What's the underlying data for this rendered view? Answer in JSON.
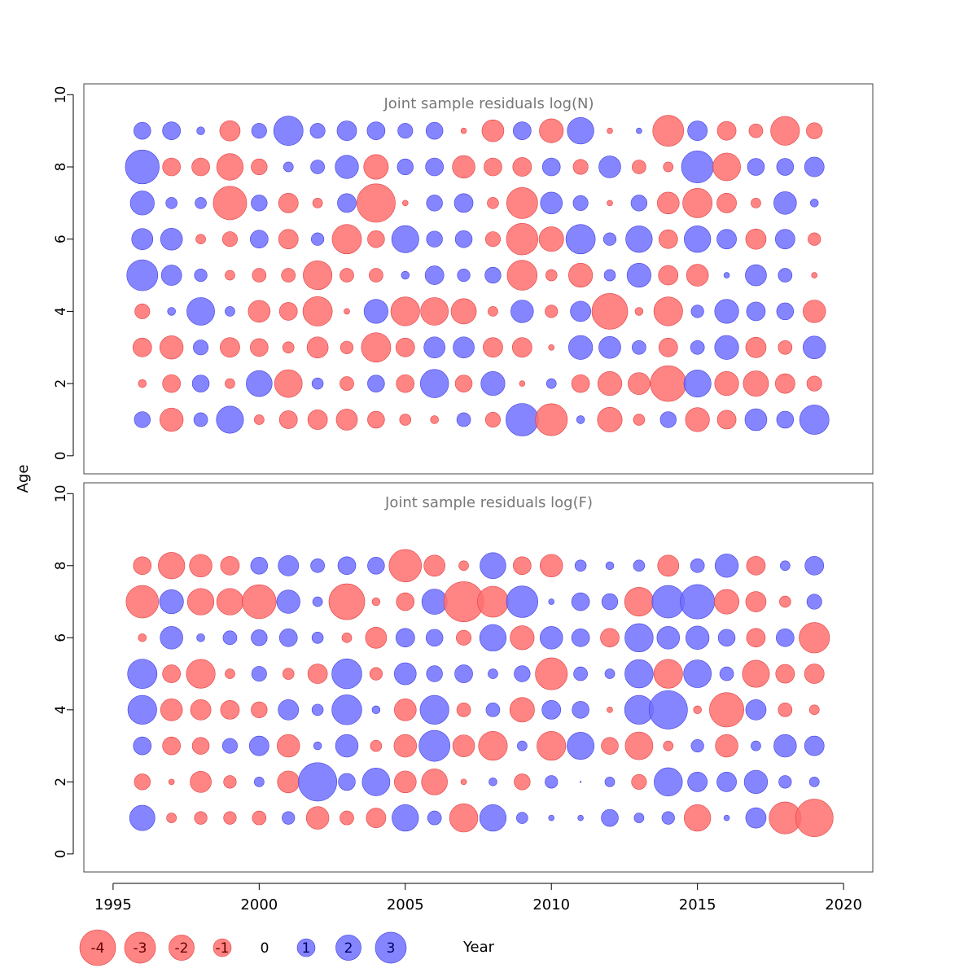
{
  "chart_data": {
    "type": "bubble",
    "xlabel": "Year",
    "ylabel": "Age",
    "xlim": [
      1994,
      2021
    ],
    "x_ticks": [
      1995,
      2000,
      2005,
      2010,
      2015,
      2020
    ],
    "y_ticks": [
      0,
      2,
      4,
      6,
      8,
      10
    ],
    "ylim": [
      -0.5,
      10.3
    ],
    "colors": {
      "negative": "#ff6f6f",
      "positive": "#7070ff"
    },
    "years": [
      1996,
      1997,
      1998,
      1999,
      2000,
      2001,
      2002,
      2003,
      2004,
      2005,
      2006,
      2007,
      2008,
      2009,
      2010,
      2011,
      2012,
      2013,
      2014,
      2015,
      2016,
      2017,
      2018,
      2019
    ],
    "legend": [
      {
        "label": "-4",
        "value": -4
      },
      {
        "label": "-3",
        "value": -3
      },
      {
        "label": "-2",
        "value": -2
      },
      {
        "label": "-1",
        "value": -1
      },
      {
        "label": "0",
        "value": 0
      },
      {
        "label": "1",
        "value": 1
      },
      {
        "label": "2",
        "value": 2
      },
      {
        "label": "3",
        "value": 3
      }
    ],
    "panels": [
      {
        "title": "Joint sample residuals log(N)",
        "ages": [
          1,
          2,
          3,
          4,
          5,
          6,
          7,
          8,
          9
        ],
        "residuals": [
          [
            0.8,
            -0.2,
            -1.1,
            -0.7,
            3.0,
            1.4,
            1.8,
            3.6,
            0.9
          ],
          [
            -1.7,
            -1.0,
            -1.7,
            0.2,
            1.3,
            1.5,
            0.4,
            -1.0,
            1.0
          ],
          [
            0.6,
            0.9,
            0.7,
            2.4,
            0.5,
            -0.3,
            0.4,
            -1.0,
            0.2
          ],
          [
            2.3,
            -0.3,
            -1.2,
            0.3,
            -0.3,
            -0.7,
            -3.5,
            -2.2,
            -1.3
          ],
          [
            -0.3,
            2.1,
            -1.0,
            -1.5,
            -0.6,
            1.0,
            0.8,
            -0.8,
            0.7
          ],
          [
            -1.0,
            -2.4,
            -0.4,
            -1.0,
            -0.6,
            -1.2,
            -1.2,
            0.3,
            2.7
          ],
          [
            -1.2,
            0.4,
            -1.4,
            -2.7,
            -2.6,
            0.5,
            -0.3,
            0.6,
            0.7
          ],
          [
            -1.4,
            -0.6,
            -0.5,
            -0.1,
            -0.6,
            -2.7,
            1.1,
            1.7,
            1.2
          ],
          [
            -0.9,
            0.9,
            -2.7,
            1.8,
            -0.6,
            -0.9,
            -4.6,
            -1.9,
            1.0
          ],
          [
            -0.4,
            -1.0,
            -1.1,
            -2.6,
            0.2,
            2.3,
            -0.1,
            0.8,
            0.7
          ],
          [
            -0.2,
            2.5,
            1.4,
            -2.4,
            1.1,
            0.8,
            0.8,
            1.0,
            0.9
          ],
          [
            0.6,
            -0.9,
            1.4,
            -2.0,
            0.5,
            0.9,
            1.1,
            -1.6,
            -0.1
          ],
          [
            -0.7,
            1.8,
            -1.2,
            -0.3,
            0.8,
            -0.7,
            -0.4,
            -1.0,
            -1.5
          ],
          [
            3.3,
            -0.1,
            -1.2,
            1.6,
            -2.8,
            -3.1,
            -3.0,
            -1.1,
            1.0
          ],
          [
            -3.2,
            0.3,
            -0.1,
            -0.5,
            -0.4,
            -1.9,
            1.5,
            1.0,
            -1.8
          ],
          [
            0.2,
            -1.0,
            1.8,
            1.3,
            -1.8,
            2.7,
            0.7,
            -0.7,
            2.2
          ],
          [
            -1.9,
            -1.8,
            1.5,
            -4.0,
            0.4,
            0.5,
            -0.1,
            1.5,
            -0.1
          ],
          [
            -0.4,
            -1.5,
            0.6,
            -0.2,
            1.8,
            2.2,
            0.8,
            -0.6,
            0.1
          ],
          [
            0.8,
            -4.0,
            -1.1,
            -2.6,
            -1.2,
            -1.1,
            -1.5,
            -0.3,
            -3.0
          ],
          [
            -1.8,
            2.3,
            0.6,
            0.5,
            -1.5,
            2.2,
            -2.7,
            3.2,
            1.2
          ],
          [
            -1.1,
            -1.8,
            1.8,
            1.8,
            0.1,
            1.2,
            -1.2,
            -2.4,
            -1.1
          ],
          [
            1.5,
            -2.0,
            -1.3,
            1.1,
            1.4,
            -1.3,
            -0.3,
            0.9,
            -0.6
          ],
          [
            0.9,
            -1.2,
            -0.6,
            0.9,
            0.6,
            1.2,
            1.6,
            0.9,
            -2.6
          ],
          [
            2.7,
            -0.7,
            1.6,
            -1.6,
            -0.1,
            -0.5,
            0.2,
            1.2,
            -0.8
          ]
        ]
      },
      {
        "title": "Joint sample residuals log(F)",
        "ages": [
          1,
          2,
          3,
          4,
          5,
          6,
          7,
          8
        ],
        "residuals": [
          [
            2.0,
            -0.8,
            1.0,
            2.6,
            2.7,
            -0.2,
            -3.3,
            -1.0
          ],
          [
            -0.3,
            -0.1,
            -1.0,
            -1.5,
            -1.0,
            1.6,
            1.8,
            -2.2
          ],
          [
            -0.5,
            -1.4,
            -0.9,
            -1.3,
            -2.6,
            0.2,
            -2.2,
            -1.6
          ],
          [
            -0.5,
            -0.5,
            0.7,
            -1.1,
            -0.3,
            0.6,
            -2.2,
            -1.1
          ],
          [
            -0.6,
            0.3,
            1.2,
            -0.8,
            0.7,
            0.8,
            -3.6,
            0.9
          ],
          [
            0.5,
            -1.5,
            -1.6,
            1.3,
            -0.4,
            1.0,
            1.7,
            1.3
          ],
          [
            -1.6,
            4.6,
            0.2,
            0.4,
            -1.2,
            0.4,
            0.3,
            0.6
          ],
          [
            -0.6,
            0.9,
            1.6,
            2.8,
            2.8,
            -0.3,
            -4.0,
            1.0
          ],
          [
            -1.2,
            2.4,
            -0.4,
            0.2,
            -0.5,
            -1.4,
            -0.2,
            0.9
          ],
          [
            2.2,
            -1.5,
            -1.6,
            -1.5,
            1.5,
            1.1,
            -1.0,
            -3.3
          ],
          [
            0.6,
            -2.1,
            3.0,
            2.6,
            0.8,
            0.9,
            2.0,
            -1.4
          ],
          [
            -2.5,
            -0.1,
            -1.5,
            -0.6,
            1.0,
            -0.7,
            -5.0,
            -0.3
          ],
          [
            2.2,
            0.2,
            -2.6,
            0.6,
            0.3,
            2.2,
            -3.0,
            2.1
          ],
          [
            0.4,
            -0.8,
            0.3,
            -1.9,
            0.8,
            -1.8,
            3.1,
            -1.0
          ],
          [
            0.1,
            0.5,
            -2.6,
            1.1,
            -3.2,
            1.6,
            0.1,
            -1.6
          ],
          [
            0.1,
            0.0,
            2.3,
            0.9,
            0.6,
            1.0,
            1.0,
            0.4
          ],
          [
            0.9,
            0.3,
            -0.9,
            -0.1,
            0.3,
            -1.1,
            0.8,
            0.2
          ],
          [
            0.3,
            -0.7,
            -2.4,
            2.6,
            2.5,
            2.5,
            -2.6,
            0.4
          ],
          [
            0.5,
            2.5,
            -0.3,
            4.6,
            -2.6,
            1.6,
            3.3,
            -1.4
          ],
          [
            -2.2,
            1.2,
            0.5,
            -0.2,
            2.4,
            1.7,
            3.7,
            0.6
          ],
          [
            0.1,
            1.2,
            -1.6,
            -3.7,
            0.6,
            0.9,
            -1.9,
            1.7
          ],
          [
            1.3,
            1.7,
            0.3,
            1.3,
            -2.3,
            -1.1,
            -1.3,
            -1.1
          ],
          [
            -3.2,
            0.5,
            1.6,
            -0.6,
            -1.1,
            1.0,
            -0.4,
            0.3
          ],
          [
            -4.4,
            0.3,
            1.2,
            -0.3,
            -1.2,
            -2.9,
            0.7,
            1.1
          ]
        ]
      }
    ]
  }
}
